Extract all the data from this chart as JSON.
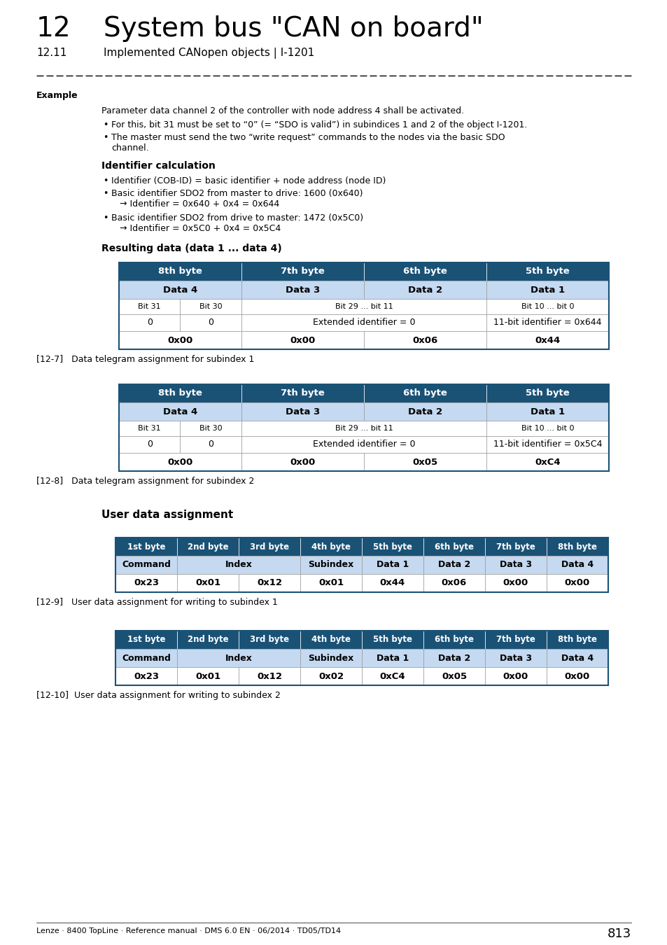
{
  "page_title_num": "12",
  "page_title_text": "System bus \"CAN on board\"",
  "subtitle_num": "12.11",
  "subtitle_text": "Implemented CANopen objects | I-1201",
  "section_label": "Example",
  "para1": "Parameter data channel 2 of the controller with node address 4 shall be activated.",
  "bullet1a": "For this, bit 31 must be set to “0” (= “SDO is valid”) in subindices 1 and 2 of the object I-1201.",
  "bullet2a": "The master must send the two “write request” commands to the nodes via the basic SDO",
  "bullet2b": "channel.",
  "subsection": "Identifier calculation",
  "id_b1": "Identifier (COB-ID) = basic identifier + node address (node ID)",
  "id_b2a": "Basic identifier SDO2 from master to drive: 1600 (0x640)",
  "id_b2b": "→ Identifier = 0x640 + 0x4 = 0x644",
  "id_b3a": "Basic identifier SDO2 from drive to master: 1472 (0x5C0)",
  "id_b3b": "→ Identifier = 0x5C0 + 0x4 = 0x5C4",
  "result_section": "Resulting data (data 1 ... data 4)",
  "table1_caption": "[12-7]   Data telegram assignment for subindex 1",
  "table2_caption": "[12-8]   Data telegram assignment for subindex 2",
  "user_data_section": "User data assignment",
  "table3_caption": "[12-9]   User data assignment for writing to subindex 1",
  "table4_caption": "[12-10]  User data assignment for writing to subindex 2",
  "footer": "Lenze · 8400 TopLine · Reference manual · DMS 6.0 EN · 06/2014 · TD05/TD14",
  "page_number": "813",
  "header_color": "#1a5276",
  "header_text_color": "#ffffff",
  "light_blue": "#c5d9f1",
  "table_border": "#1a5276",
  "bg_color": "#ffffff"
}
